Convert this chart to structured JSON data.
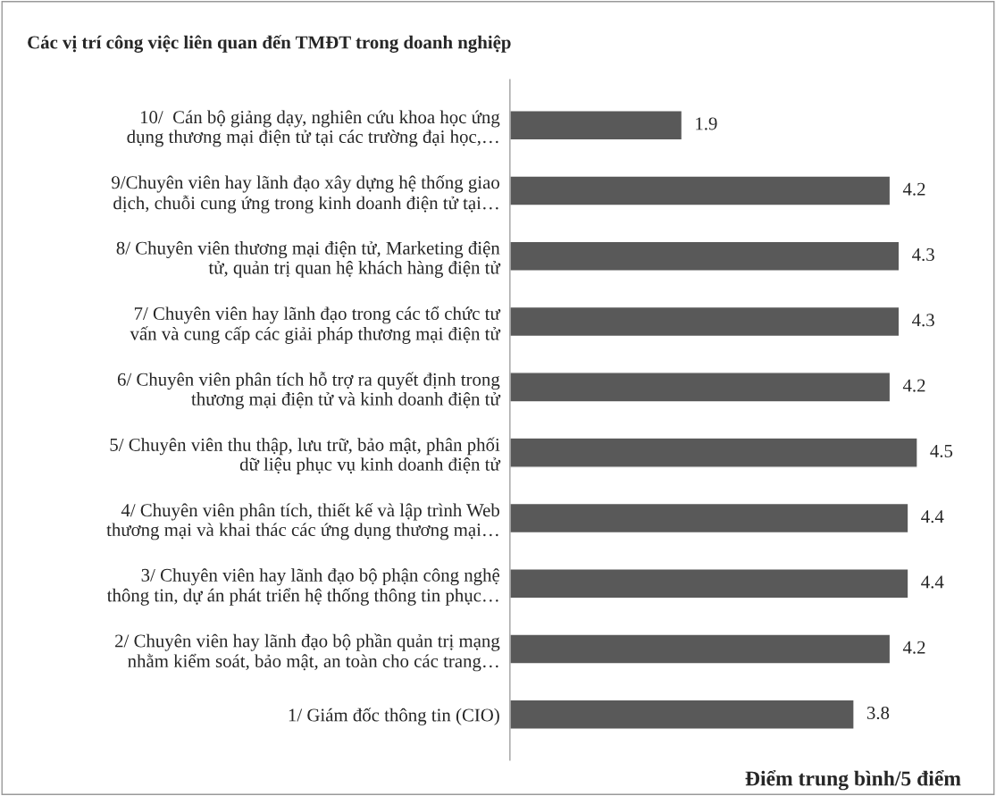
{
  "chart_data": {
    "type": "bar",
    "orientation": "horizontal",
    "title": "Các vị trí công việc liên quan đến TMĐT trong doanh nghiệp",
    "xlabel": "Điểm trung bình/5 điểm",
    "categories": [
      "10/  Cán bộ giảng dạy, nghiên cứu khoa học ứng\ndụng thương mại điện tử tại các trường đại học,…",
      "9/Chuyên viên hay lãnh đạo xây dựng hệ thống giao\ndịch, chuỗi cung ứng trong kinh doanh điện tử tại…",
      "8/ Chuyên viên thương mại điện tử, Marketing điện\ntử, quản trị quan hệ khách hàng điện tử",
      "7/ Chuyên viên hay lãnh đạo trong các tổ chức tư\nvấn và cung cấp các giải pháp thương mại điện tử",
      "6/ Chuyên viên phân tích hỗ trợ ra quyết định trong\nthương mại điện tử và kinh doanh điện tử",
      "5/ Chuyên viên thu thập, lưu trữ, bảo mật, phân phối\ndữ liệu phục vụ kinh doanh điện tử",
      "4/ Chuyên viên phân tích, thiết kế và lập trình Web\nthương mại và khai thác các ứng dụng thương mại…",
      "3/ Chuyên viên hay lãnh đạo bộ phận công nghệ\nthông tin, dự án phát triển hệ thống thông tin phục…",
      "2/ Chuyên viên hay lãnh đạo bộ phần quản trị mạng\nnhằm kiểm soát, bảo mật, an toàn cho các trang…",
      "1/ Giám đốc thông tin (CIO)"
    ],
    "values": [
      1.9,
      4.2,
      4.3,
      4.3,
      4.2,
      4.5,
      4.4,
      4.4,
      4.2,
      3.8
    ],
    "color": "#595959",
    "data_labels": true,
    "grid": false,
    "legend": false
  }
}
